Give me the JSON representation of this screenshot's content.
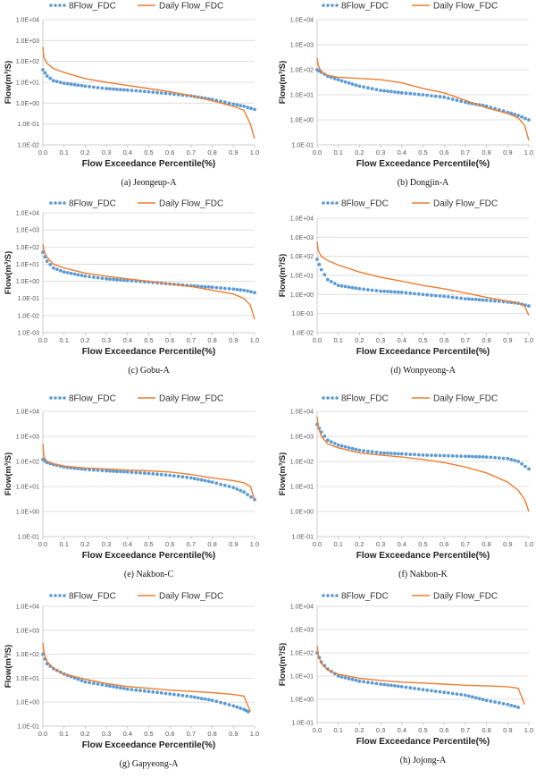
{
  "figure": {
    "colors": {
      "eight_flow": "#5b9bd5",
      "daily_flow": "#ed7d31",
      "grid": "#d9d9d9",
      "axis": "#bfbfbf"
    },
    "legend": {
      "eight_flow": "8Flow_FDC",
      "daily_flow": "Daily Flow_FDC",
      "placement": "top"
    },
    "x_axis_label": "Flow Exceedance Percentile(%)",
    "y_axis_label": "Flow(m³/S)",
    "x_tick_labels": [
      "0.0",
      "0.1",
      "0.2",
      "0.3",
      "0.4",
      "0.5",
      "0.6",
      "0.7",
      "0.8",
      "0.9",
      "1.0"
    ]
  },
  "chart_data": [
    {
      "type": "line",
      "scale": "log",
      "caption": "(a)  Jeongeup-A",
      "ylim": [
        0.01,
        10000
      ],
      "y_tick_labels": [
        "1.0E-02",
        "1.0E-01",
        "1.0E+00",
        "1.0E+01",
        "1.0E+02",
        "1.0E+03",
        "1.0E+04"
      ],
      "series": [
        {
          "name": "8Flow_FDC",
          "x": [
            0.0,
            0.02,
            0.05,
            0.1,
            0.2,
            0.3,
            0.4,
            0.5,
            0.6,
            0.7,
            0.8,
            0.9,
            0.95,
            1.0
          ],
          "y": [
            40,
            20,
            12,
            9,
            6.5,
            5,
            4.2,
            3.5,
            2.8,
            2.2,
            1.5,
            0.9,
            0.7,
            0.5
          ]
        },
        {
          "name": "Daily Flow_FDC",
          "x": [
            0.0,
            0.005,
            0.02,
            0.05,
            0.1,
            0.2,
            0.3,
            0.4,
            0.5,
            0.6,
            0.7,
            0.8,
            0.9,
            0.95,
            0.98,
            1.0
          ],
          "y": [
            500,
            150,
            80,
            45,
            30,
            15,
            10,
            7,
            5,
            3.5,
            2.3,
            1.3,
            0.7,
            0.45,
            0.1,
            0.02
          ]
        }
      ]
    },
    {
      "type": "line",
      "scale": "log",
      "caption": "(b)  Dongjin-A",
      "ylim": [
        0.1,
        10000
      ],
      "y_tick_labels": [
        "1.0E-01",
        "1.0E+00",
        "1.0E+01",
        "1.0E+02",
        "1.0E+03",
        "1.0E+04"
      ],
      "series": [
        {
          "name": "8Flow_FDC",
          "x": [
            0.0,
            0.02,
            0.05,
            0.1,
            0.2,
            0.3,
            0.4,
            0.5,
            0.6,
            0.7,
            0.8,
            0.9,
            0.95,
            1.0
          ],
          "y": [
            100,
            80,
            55,
            40,
            22,
            15,
            12,
            10,
            8,
            5,
            3.5,
            2,
            1.5,
            1
          ]
        },
        {
          "name": "Daily Flow_FDC",
          "x": [
            0.0,
            0.005,
            0.02,
            0.05,
            0.1,
            0.2,
            0.3,
            0.4,
            0.5,
            0.6,
            0.7,
            0.8,
            0.9,
            0.95,
            0.98,
            1.0
          ],
          "y": [
            300,
            150,
            80,
            60,
            50,
            45,
            40,
            30,
            18,
            12,
            6,
            3,
            1.8,
            1.2,
            0.6,
            0.15
          ]
        }
      ]
    },
    {
      "type": "line",
      "scale": "log",
      "caption": "(c)  Gobu-A",
      "ylim": [
        0.001,
        10000
      ],
      "y_tick_labels": [
        "1.0E-03",
        "1.0E-02",
        "1.0E-01",
        "1.0E+00",
        "1.0E+01",
        "1.0E+02",
        "1.0E+03",
        "1.0E+04"
      ],
      "series": [
        {
          "name": "8Flow_FDC",
          "x": [
            0.0,
            0.02,
            0.05,
            0.1,
            0.2,
            0.3,
            0.4,
            0.5,
            0.6,
            0.7,
            0.8,
            0.9,
            0.95,
            1.0
          ],
          "y": [
            50,
            15,
            6,
            3.5,
            2,
            1.4,
            1.1,
            0.9,
            0.7,
            0.55,
            0.45,
            0.35,
            0.3,
            0.22
          ]
        },
        {
          "name": "Daily Flow_FDC",
          "x": [
            0.0,
            0.005,
            0.02,
            0.05,
            0.1,
            0.2,
            0.3,
            0.4,
            0.5,
            0.6,
            0.7,
            0.8,
            0.9,
            0.95,
            0.98,
            1.0
          ],
          "y": [
            150,
            60,
            25,
            10,
            6,
            3,
            2,
            1.4,
            1,
            0.7,
            0.5,
            0.3,
            0.18,
            0.1,
            0.04,
            0.006
          ]
        }
      ]
    },
    {
      "type": "line",
      "scale": "log",
      "caption": "(d)  Wonpyeong-A",
      "ylim": [
        0.01,
        10000
      ],
      "y_tick_labels": [
        "1.0E-02",
        "1.0E-01",
        "1.0E+00",
        "1.0E+01",
        "1.0E+02",
        "1.0E+03",
        "1.0E+04"
      ],
      "series": [
        {
          "name": "8Flow_FDC",
          "x": [
            0.0,
            0.02,
            0.05,
            0.1,
            0.2,
            0.3,
            0.4,
            0.5,
            0.6,
            0.7,
            0.8,
            0.9,
            0.95,
            1.0
          ],
          "y": [
            70,
            20,
            6,
            3,
            2,
            1.5,
            1.3,
            1,
            0.8,
            0.6,
            0.5,
            0.4,
            0.35,
            0.25
          ]
        },
        {
          "name": "Daily Flow_FDC",
          "x": [
            0.0,
            0.005,
            0.02,
            0.05,
            0.1,
            0.2,
            0.3,
            0.4,
            0.5,
            0.6,
            0.7,
            0.8,
            0.9,
            0.95,
            0.98,
            1.0
          ],
          "y": [
            600,
            200,
            100,
            60,
            35,
            15,
            8,
            5,
            3,
            2,
            1.2,
            0.7,
            0.45,
            0.35,
            0.25,
            0.08
          ]
        }
      ]
    },
    {
      "type": "line",
      "scale": "log",
      "caption": "(e)  Nakbon-C",
      "ylim": [
        0.1,
        10000
      ],
      "y_tick_labels": [
        "1.0E-01",
        "1.0E+00",
        "1.0E+01",
        "1.0E+02",
        "1.0E+03",
        "1.0E+04"
      ],
      "series": [
        {
          "name": "8Flow_FDC",
          "x": [
            0.0,
            0.02,
            0.05,
            0.1,
            0.2,
            0.3,
            0.4,
            0.5,
            0.6,
            0.7,
            0.8,
            0.9,
            0.95,
            1.0
          ],
          "y": [
            120,
            90,
            75,
            60,
            48,
            42,
            38,
            33,
            28,
            22,
            15,
            9,
            6,
            3
          ]
        },
        {
          "name": "Daily Flow_FDC",
          "x": [
            0.0,
            0.005,
            0.02,
            0.05,
            0.1,
            0.2,
            0.3,
            0.4,
            0.5,
            0.6,
            0.7,
            0.8,
            0.9,
            0.95,
            0.98,
            1.0
          ],
          "y": [
            500,
            150,
            100,
            80,
            65,
            55,
            50,
            45,
            42,
            38,
            30,
            22,
            17,
            14,
            10,
            3
          ]
        }
      ]
    },
    {
      "type": "line",
      "scale": "log",
      "caption": "(f)  Nakbon-K",
      "ylim": [
        0.1,
        10000
      ],
      "y_tick_labels": [
        "1.0E-01",
        "1.0E+00",
        "1.0E+01",
        "1.0E+02",
        "1.0E+03",
        "1.0E+04"
      ],
      "series": [
        {
          "name": "8Flow_FDC",
          "x": [
            0.0,
            0.02,
            0.05,
            0.1,
            0.2,
            0.3,
            0.4,
            0.5,
            0.6,
            0.7,
            0.8,
            0.9,
            0.95,
            1.0
          ],
          "y": [
            3000,
            1500,
            700,
            450,
            280,
            220,
            200,
            180,
            170,
            160,
            150,
            130,
            100,
            50
          ]
        },
        {
          "name": "Daily Flow_FDC",
          "x": [
            0.0,
            0.005,
            0.02,
            0.05,
            0.1,
            0.2,
            0.3,
            0.4,
            0.5,
            0.6,
            0.7,
            0.8,
            0.9,
            0.95,
            0.98,
            1.0
          ],
          "y": [
            6000,
            2500,
            1000,
            500,
            350,
            220,
            180,
            150,
            120,
            90,
            60,
            35,
            15,
            7,
            3,
            1
          ]
        }
      ]
    },
    {
      "type": "line",
      "scale": "log",
      "caption": "(g)  Gapyeong-A",
      "ylim": [
        0.1,
        10000
      ],
      "y_tick_labels": [
        "1.0E-01",
        "1.0E+00",
        "1.0E+01",
        "1.0E+02",
        "1.0E+03",
        "1.0E+04"
      ],
      "series": [
        {
          "name": "8Flow_FDC",
          "x": [
            0.0,
            0.02,
            0.05,
            0.1,
            0.2,
            0.3,
            0.4,
            0.5,
            0.6,
            0.7,
            0.8,
            0.9,
            0.95,
            0.97
          ],
          "y": [
            100,
            40,
            25,
            15,
            7,
            5,
            3.5,
            2.8,
            2.2,
            1.7,
            1.2,
            0.7,
            0.5,
            0.4
          ]
        },
        {
          "name": "Daily Flow_FDC",
          "x": [
            0.0,
            0.005,
            0.02,
            0.05,
            0.1,
            0.2,
            0.3,
            0.4,
            0.5,
            0.6,
            0.7,
            0.8,
            0.9,
            0.95,
            0.98
          ],
          "y": [
            300,
            120,
            50,
            25,
            15,
            9,
            6,
            4.5,
            3.8,
            3.2,
            2.8,
            2.5,
            2.1,
            1.8,
            0.4
          ]
        }
      ]
    },
    {
      "type": "line",
      "scale": "log",
      "caption": "(h)  Jojong-A",
      "ylim": [
        0.1,
        10000
      ],
      "y_tick_labels": [
        "1.0E-01",
        "1.0E+00",
        "1.0E+01",
        "1.0E+02",
        "1.0E+03",
        "1.0E+04"
      ],
      "series": [
        {
          "name": "8Flow_FDC",
          "x": [
            0.0,
            0.02,
            0.05,
            0.1,
            0.2,
            0.3,
            0.4,
            0.5,
            0.6,
            0.7,
            0.8,
            0.9,
            0.95
          ],
          "y": [
            100,
            40,
            20,
            10,
            6,
            4.5,
            3.5,
            2.6,
            2,
            1.5,
            0.9,
            0.6,
            0.45
          ]
        },
        {
          "name": "Daily Flow_FDC",
          "x": [
            0.0,
            0.005,
            0.02,
            0.05,
            0.1,
            0.2,
            0.3,
            0.4,
            0.5,
            0.6,
            0.7,
            0.8,
            0.9,
            0.95,
            0.98
          ],
          "y": [
            200,
            80,
            35,
            18,
            12,
            8,
            6.5,
            5.5,
            5,
            4.5,
            4,
            3.8,
            3.5,
            3,
            0.6
          ]
        }
      ]
    }
  ]
}
